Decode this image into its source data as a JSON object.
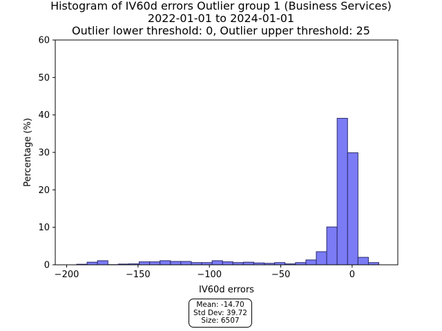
{
  "chart_data": {
    "type": "bar",
    "title_lines": [
      "Histogram of IV60d errors Outlier group 1 (Business Services)",
      "2022-01-01 to 2024-01-01",
      "Outlier lower threshold: 0, Outlier upper threshold: 25"
    ],
    "xlabel": "IV60d errors",
    "ylabel": "Percentage (%)",
    "xlim": [
      -208,
      32
    ],
    "ylim": [
      0,
      60
    ],
    "xticks": [
      -200,
      -150,
      -100,
      -50,
      0
    ],
    "xtick_labels": [
      "−200",
      "−150",
      "−100",
      "−50",
      "0"
    ],
    "yticks": [
      0,
      10,
      20,
      30,
      40,
      50,
      60
    ],
    "ytick_labels": [
      "0",
      "10",
      "20",
      "30",
      "40",
      "50",
      "60"
    ],
    "grid": false,
    "bar_color": "#7b7bf5",
    "bar_edge_color": "#2a2a6e",
    "bin_width": 7.3,
    "bins": [
      {
        "left": -193.0,
        "value": 0.15
      },
      {
        "left": -185.7,
        "value": 0.7
      },
      {
        "left": -178.4,
        "value": 1.1
      },
      {
        "left": -171.1,
        "value": 0.05
      },
      {
        "left": -163.8,
        "value": 0.2
      },
      {
        "left": -156.5,
        "value": 0.25
      },
      {
        "left": -149.2,
        "value": 0.8
      },
      {
        "left": -141.9,
        "value": 0.8
      },
      {
        "left": -134.6,
        "value": 1.1
      },
      {
        "left": -127.3,
        "value": 0.9
      },
      {
        "left": -120.0,
        "value": 0.9
      },
      {
        "left": -112.7,
        "value": 0.6
      },
      {
        "left": -105.4,
        "value": 0.6
      },
      {
        "left": -98.1,
        "value": 1.1
      },
      {
        "left": -90.8,
        "value": 0.8
      },
      {
        "left": -83.5,
        "value": 0.6
      },
      {
        "left": -76.2,
        "value": 0.7
      },
      {
        "left": -68.9,
        "value": 0.5
      },
      {
        "left": -61.6,
        "value": 0.4
      },
      {
        "left": -54.3,
        "value": 0.6
      },
      {
        "left": -47.0,
        "value": 0.25
      },
      {
        "left": -39.7,
        "value": 0.6
      },
      {
        "left": -32.4,
        "value": 1.3
      },
      {
        "left": -25.1,
        "value": 3.5
      },
      {
        "left": -17.8,
        "value": 10.1
      },
      {
        "left": -10.5,
        "value": 39.1
      },
      {
        "left": -3.2,
        "value": 29.9
      },
      {
        "left": 4.1,
        "value": 2.0
      },
      {
        "left": 11.4,
        "value": 0.6
      }
    ]
  },
  "stats": {
    "mean": "Mean: -14.70",
    "std_dev": "Std Dev: 39.72",
    "size": "Size: 6507"
  }
}
